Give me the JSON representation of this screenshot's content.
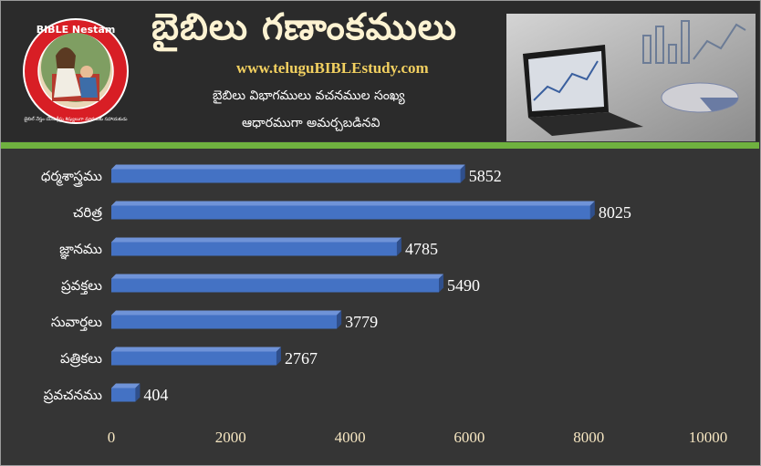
{
  "header": {
    "title": "బైబిలు గణాంకములు",
    "website": "www.teluguBIBLEstudy.com",
    "subtitle_line1": "బైబిలు విభాగములు వచనముల సంఖ్య",
    "subtitle_line2": "ఆధారముగా అమర్చబడినవి",
    "logo": {
      "top_text": "BIBLE Nestam",
      "ring_text": "Helper to become disciple of JESUS CHRIST",
      "bottom_text": "బైబిల్ నేస్తం యేసుక్రీస్తు శిష్యులుగా మారుటకు సహాయకుడు"
    }
  },
  "colors": {
    "background": "#353535",
    "bar": "#4472c4",
    "accent_green": "#6fb13f",
    "website_gold": "#f2d060",
    "tick_cream": "#f7e7c2"
  },
  "chart_data": {
    "type": "bar",
    "orientation": "horizontal",
    "categories": [
      "ధర్మశాస్త్రము",
      "చరిత్ర",
      "జ్ఞానము",
      "ప్రవక్తలు",
      "సువార్తలు",
      "పత్రికలు",
      "ప్రవచనము"
    ],
    "values": [
      5852,
      8025,
      4785,
      5490,
      3779,
      2767,
      404
    ],
    "xlim": [
      0,
      10000
    ],
    "xticks": [
      0,
      2000,
      4000,
      6000,
      8000,
      10000
    ],
    "data_labels": true,
    "grid": false
  }
}
